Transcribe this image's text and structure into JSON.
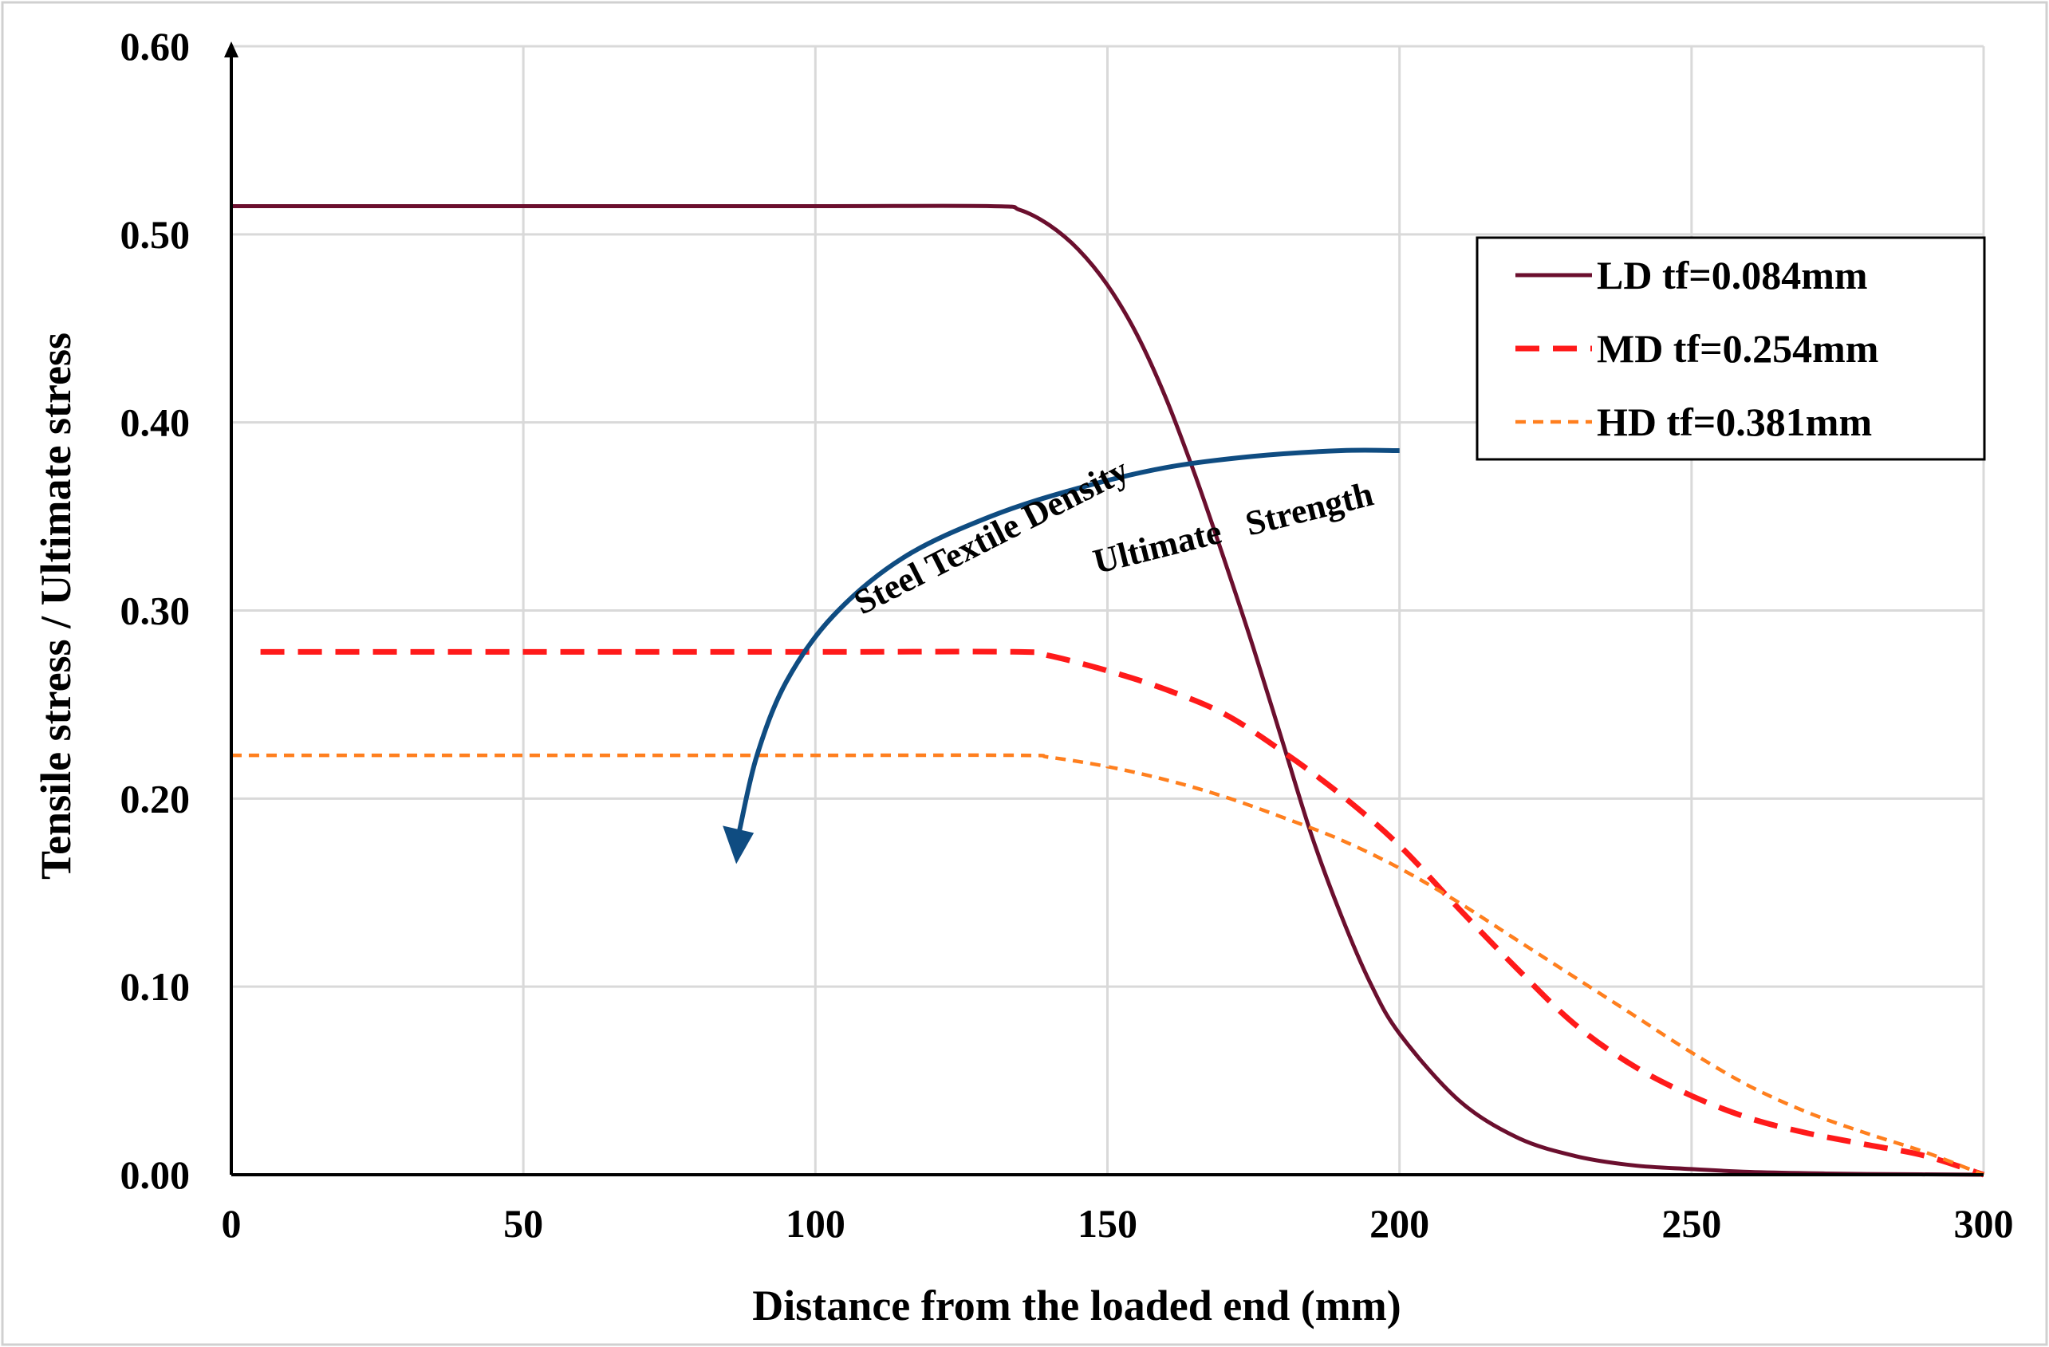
{
  "chart_data": {
    "type": "line",
    "title": "",
    "xlabel": "Distance from the loaded end (mm)",
    "ylabel": "Tensile stress / Ultimate stress",
    "xlim": [
      0,
      300
    ],
    "ylim": [
      0,
      0.6
    ],
    "xticks": [
      0,
      50,
      100,
      150,
      200,
      250,
      300
    ],
    "xtick_labels": [
      "0",
      "50",
      "100",
      "150",
      "200",
      "250",
      "300"
    ],
    "yticks": [
      0,
      0.1,
      0.2,
      0.3,
      0.4,
      0.5,
      0.6
    ],
    "ytick_labels": [
      "0.00",
      "0.10",
      "0.20",
      "0.30",
      "0.40",
      "0.50",
      "0.60"
    ],
    "grid": true,
    "legend_position": "top-right",
    "series": [
      {
        "name": "LD tf=0.084mm",
        "color": "#6B0F2E",
        "style": "solid",
        "x": [
          0,
          50,
          100,
          130,
          135,
          140,
          145,
          150,
          155,
          160,
          165,
          170,
          175,
          180,
          185,
          190,
          195,
          200,
          210,
          220,
          230,
          240,
          250,
          260,
          270,
          280,
          300
        ],
        "y": [
          0.515,
          0.515,
          0.515,
          0.515,
          0.513,
          0.505,
          0.492,
          0.473,
          0.447,
          0.413,
          0.372,
          0.327,
          0.28,
          0.23,
          0.18,
          0.138,
          0.102,
          0.075,
          0.04,
          0.02,
          0.01,
          0.005,
          0.003,
          0.0015,
          0.0008,
          0.0004,
          0.0
        ]
      },
      {
        "name": "MD tf=0.254mm",
        "color": "#FF1A1A",
        "style": "dashed",
        "x": [
          5,
          50,
          100,
          135,
          140,
          150,
          160,
          170,
          180,
          190,
          200,
          210,
          220,
          230,
          240,
          250,
          260,
          270,
          280,
          290,
          300
        ],
        "y": [
          0.278,
          0.278,
          0.278,
          0.278,
          0.276,
          0.268,
          0.258,
          0.245,
          0.225,
          0.202,
          0.175,
          0.142,
          0.11,
          0.08,
          0.058,
          0.042,
          0.03,
          0.022,
          0.016,
          0.01,
          0.0
        ]
      },
      {
        "name": "HD tf=0.381mm",
        "color": "#FF7F1E",
        "style": "dashed",
        "x": [
          0,
          50,
          100,
          135,
          140,
          150,
          160,
          170,
          180,
          190,
          200,
          210,
          220,
          230,
          240,
          250,
          260,
          270,
          280,
          290,
          300
        ],
        "y": [
          0.223,
          0.223,
          0.223,
          0.223,
          0.222,
          0.217,
          0.21,
          0.201,
          0.19,
          0.178,
          0.163,
          0.145,
          0.125,
          0.105,
          0.085,
          0.065,
          0.047,
          0.033,
          0.022,
          0.012,
          0.0
        ]
      }
    ],
    "annotations": [
      {
        "text": "Steel Textile Density"
      },
      {
        "text": "Ultimate   Strength"
      }
    ],
    "annotation_arrow": {
      "color": "#0F4C81",
      "x": [
        200,
        190,
        175,
        160,
        145,
        130,
        115,
        103,
        95,
        90,
        87
      ],
      "y": [
        0.385,
        0.385,
        0.382,
        0.376,
        0.365,
        0.35,
        0.328,
        0.297,
        0.262,
        0.223,
        0.183
      ]
    }
  }
}
